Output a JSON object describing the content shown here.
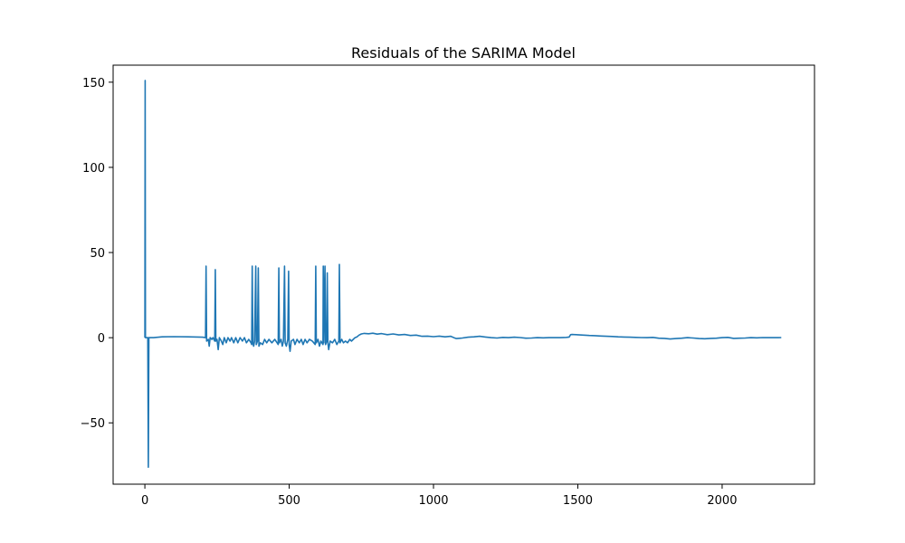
{
  "chart_data": {
    "type": "line",
    "title": "Residuals of the SARIMA Model",
    "xlabel": "",
    "ylabel": "",
    "xlim": [
      -110,
      2320
    ],
    "ylim": [
      -86,
      160
    ],
    "xticks": [
      0,
      500,
      1000,
      1500,
      2000
    ],
    "xtick_labels": [
      "0",
      "500",
      "1000",
      "1500",
      "2000"
    ],
    "yticks": [
      -50,
      0,
      50,
      100,
      150
    ],
    "ytick_labels": [
      "−50",
      "0",
      "50",
      "100",
      "150"
    ],
    "grid": false,
    "colors": {
      "line": "#1f77b4",
      "axes": "#000000",
      "background": "#ffffff"
    },
    "series": [
      {
        "points": [
          [
            0,
            0
          ],
          [
            1,
            151
          ],
          [
            2,
            0
          ],
          [
            10,
            0
          ],
          [
            12,
            -76
          ],
          [
            14,
            0
          ],
          [
            30,
            0
          ],
          [
            60,
            0.5
          ],
          [
            100,
            0.6
          ],
          [
            150,
            0.5
          ],
          [
            200,
            0.3
          ],
          [
            210,
            0
          ],
          [
            212,
            42
          ],
          [
            214,
            -2
          ],
          [
            220,
            -1
          ],
          [
            223,
            -5
          ],
          [
            226,
            0
          ],
          [
            232,
            -1
          ],
          [
            236,
            0
          ],
          [
            242,
            -2
          ],
          [
            244,
            40
          ],
          [
            246,
            -2
          ],
          [
            250,
            -1
          ],
          [
            254,
            -7
          ],
          [
            258,
            0
          ],
          [
            265,
            -2
          ],
          [
            270,
            -4
          ],
          [
            275,
            0
          ],
          [
            282,
            -3
          ],
          [
            288,
            0
          ],
          [
            295,
            -2
          ],
          [
            300,
            0
          ],
          [
            308,
            -3
          ],
          [
            315,
            0
          ],
          [
            322,
            -3
          ],
          [
            330,
            0
          ],
          [
            338,
            -2
          ],
          [
            345,
            0
          ],
          [
            352,
            -3
          ],
          [
            360,
            -1
          ],
          [
            368,
            -3
          ],
          [
            370,
            -4
          ],
          [
            372,
            42
          ],
          [
            374,
            -3
          ],
          [
            377,
            -5
          ],
          [
            380,
            -2
          ],
          [
            384,
            42
          ],
          [
            386,
            -4
          ],
          [
            390,
            -2
          ],
          [
            393,
            41
          ],
          [
            395,
            -5
          ],
          [
            400,
            -3
          ],
          [
            408,
            -4
          ],
          [
            415,
            -1
          ],
          [
            422,
            -3
          ],
          [
            430,
            -1
          ],
          [
            440,
            -3
          ],
          [
            450,
            -1
          ],
          [
            458,
            -3
          ],
          [
            462,
            -4
          ],
          [
            464,
            41
          ],
          [
            466,
            -3
          ],
          [
            472,
            -1
          ],
          [
            476,
            -5
          ],
          [
            480,
            -2
          ],
          [
            484,
            42
          ],
          [
            486,
            -3
          ],
          [
            490,
            -5
          ],
          [
            495,
            -1
          ],
          [
            498,
            39
          ],
          [
            500,
            -4
          ],
          [
            503,
            -8
          ],
          [
            507,
            -2
          ],
          [
            515,
            -1
          ],
          [
            520,
            -4
          ],
          [
            527,
            -1
          ],
          [
            535,
            -3
          ],
          [
            542,
            -1
          ],
          [
            548,
            -4
          ],
          [
            555,
            -1
          ],
          [
            562,
            -3
          ],
          [
            570,
            -1
          ],
          [
            580,
            -2
          ],
          [
            590,
            -4
          ],
          [
            592,
            42
          ],
          [
            594,
            -3
          ],
          [
            600,
            -1
          ],
          [
            605,
            -5
          ],
          [
            610,
            -2
          ],
          [
            617,
            -4
          ],
          [
            618,
            42
          ],
          [
            620,
            -3
          ],
          [
            624,
            42
          ],
          [
            626,
            -4
          ],
          [
            630,
            -2
          ],
          [
            632,
            38
          ],
          [
            634,
            -3
          ],
          [
            637,
            -7
          ],
          [
            642,
            -2
          ],
          [
            650,
            -3
          ],
          [
            658,
            -1
          ],
          [
            665,
            -4
          ],
          [
            672,
            -2
          ],
          [
            674,
            43
          ],
          [
            676,
            -3
          ],
          [
            682,
            -1
          ],
          [
            688,
            -3
          ],
          [
            695,
            -2
          ],
          [
            702,
            -3
          ],
          [
            710,
            -1
          ],
          [
            716,
            -2
          ],
          [
            722,
            -1
          ],
          [
            728,
            0
          ],
          [
            735,
            0.5
          ],
          [
            742,
            1.5
          ],
          [
            750,
            2.2
          ],
          [
            760,
            2.5
          ],
          [
            775,
            2.3
          ],
          [
            790,
            2.6
          ],
          [
            805,
            2.1
          ],
          [
            820,
            2.4
          ],
          [
            840,
            1.8
          ],
          [
            860,
            2.2
          ],
          [
            880,
            1.6
          ],
          [
            900,
            1.9
          ],
          [
            920,
            1.3
          ],
          [
            940,
            1.5
          ],
          [
            960,
            0.8
          ],
          [
            980,
            0.9
          ],
          [
            1000,
            0.6
          ],
          [
            1020,
            0.9
          ],
          [
            1040,
            0.5
          ],
          [
            1060,
            0.8
          ],
          [
            1075,
            -0.3
          ],
          [
            1080,
            -0.5
          ],
          [
            1100,
            -0.2
          ],
          [
            1120,
            0.3
          ],
          [
            1140,
            0.5
          ],
          [
            1160,
            0.8
          ],
          [
            1180,
            0.4
          ],
          [
            1200,
            0
          ],
          [
            1220,
            -0.2
          ],
          [
            1240,
            0.2
          ],
          [
            1260,
            0
          ],
          [
            1280,
            0.3
          ],
          [
            1300,
            0.1
          ],
          [
            1320,
            -0.3
          ],
          [
            1340,
            -0.2
          ],
          [
            1360,
            0
          ],
          [
            1380,
            -0.1
          ],
          [
            1400,
            0
          ],
          [
            1420,
            0.1
          ],
          [
            1440,
            0
          ],
          [
            1460,
            0.2
          ],
          [
            1470,
            0.4
          ],
          [
            1475,
            1.8
          ],
          [
            1480,
            1.9
          ],
          [
            1500,
            1.7
          ],
          [
            1520,
            1.5
          ],
          [
            1540,
            1.3
          ],
          [
            1560,
            1.2
          ],
          [
            1580,
            1
          ],
          [
            1600,
            0.8
          ],
          [
            1620,
            0.7
          ],
          [
            1640,
            0.5
          ],
          [
            1660,
            0.4
          ],
          [
            1680,
            0.3
          ],
          [
            1700,
            0.2
          ],
          [
            1720,
            0.1
          ],
          [
            1740,
            0
          ],
          [
            1760,
            0.2
          ],
          [
            1780,
            -0.3
          ],
          [
            1800,
            -0.4
          ],
          [
            1820,
            -0.8
          ],
          [
            1840,
            -0.5
          ],
          [
            1860,
            -0.3
          ],
          [
            1880,
            0
          ],
          [
            1900,
            -0.2
          ],
          [
            1920,
            -0.5
          ],
          [
            1940,
            -0.6
          ],
          [
            1960,
            -0.4
          ],
          [
            1980,
            -0.3
          ],
          [
            2000,
            0
          ],
          [
            2020,
            0.2
          ],
          [
            2040,
            -0.4
          ],
          [
            2060,
            -0.3
          ],
          [
            2080,
            -0.2
          ],
          [
            2100,
            0
          ],
          [
            2120,
            -0.1
          ],
          [
            2140,
            0.1
          ],
          [
            2160,
            0
          ],
          [
            2180,
            0.1
          ],
          [
            2195,
            0
          ],
          [
            2205,
            0.1
          ]
        ]
      }
    ]
  }
}
